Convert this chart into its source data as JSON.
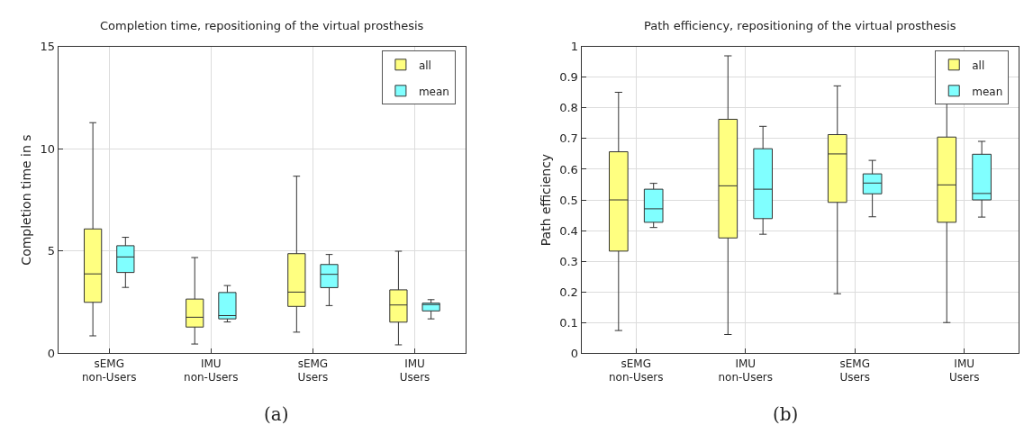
{
  "chart_data": [
    {
      "type": "box",
      "title": "Completion time, repositioning of the virtual prosthesis",
      "ylabel": "Completion time in s",
      "categories": [
        "sEMG\nnon-Users",
        "IMU\nnon-Users",
        "sEMG\nUsers",
        "IMU\nUsers"
      ],
      "ylim": [
        0,
        15
      ],
      "yticks": [
        0,
        5,
        10,
        15
      ],
      "grid": true,
      "legend": "top right",
      "annotations": [
        "(a)"
      ],
      "series": [
        {
          "name": "all",
          "color": "#ffff80",
          "boxes": [
            {
              "low": 0.85,
              "q1": 2.49,
              "median": 3.88,
              "q3": 6.08,
              "high": 11.28
            },
            {
              "low": 0.45,
              "q1": 1.28,
              "median": 1.76,
              "q3": 2.65,
              "high": 4.68
            },
            {
              "low": 1.03,
              "q1": 2.29,
              "median": 2.99,
              "q3": 4.87,
              "high": 8.66
            },
            {
              "low": 0.41,
              "q1": 1.52,
              "median": 2.36,
              "q3": 3.1,
              "high": 4.99
            }
          ]
        },
        {
          "name": "mean",
          "color": "#80ffff",
          "boxes": [
            {
              "low": 3.22,
              "q1": 3.95,
              "median": 4.71,
              "q3": 5.26,
              "high": 5.67
            },
            {
              "low": 1.53,
              "q1": 1.68,
              "median": 1.84,
              "q3": 2.97,
              "high": 3.31
            },
            {
              "low": 2.33,
              "q1": 3.21,
              "median": 3.86,
              "q3": 4.34,
              "high": 4.83
            },
            {
              "low": 1.68,
              "q1": 2.07,
              "median": 2.38,
              "q3": 2.45,
              "high": 2.62
            }
          ]
        }
      ]
    },
    {
      "type": "box",
      "title": "Path efficiency, repositioning of the virtual prosthesis",
      "ylabel": "Path efficiency",
      "categories": [
        "sEMG\nnon-Users",
        "IMU\nnon-Users",
        "sEMG\nUsers",
        "IMU\nUsers"
      ],
      "ylim": [
        0,
        1
      ],
      "yticks": [
        0,
        0.1,
        0.2,
        0.3,
        0.4,
        0.5,
        0.6,
        0.7,
        0.8,
        0.9,
        1
      ],
      "grid": true,
      "legend": "top right",
      "annotations": [
        "(b)"
      ],
      "series": [
        {
          "name": "all",
          "color": "#ffff80",
          "boxes": [
            {
              "low": 0.074,
              "q1": 0.333,
              "median": 0.5,
              "q3": 0.657,
              "high": 0.851
            },
            {
              "low": 0.061,
              "q1": 0.376,
              "median": 0.546,
              "q3": 0.763,
              "high": 0.97
            },
            {
              "low": 0.194,
              "q1": 0.492,
              "median": 0.65,
              "q3": 0.713,
              "high": 0.872
            },
            {
              "low": 0.1,
              "q1": 0.427,
              "median": 0.549,
              "q3": 0.705,
              "high": 0.959
            }
          ]
        },
        {
          "name": "mean",
          "color": "#80ffff",
          "boxes": [
            {
              "low": 0.41,
              "q1": 0.427,
              "median": 0.471,
              "q3": 0.535,
              "high": 0.554
            },
            {
              "low": 0.388,
              "q1": 0.439,
              "median": 0.535,
              "q3": 0.667,
              "high": 0.74
            },
            {
              "low": 0.445,
              "q1": 0.52,
              "median": 0.555,
              "q3": 0.585,
              "high": 0.629
            },
            {
              "low": 0.444,
              "q1": 0.5,
              "median": 0.521,
              "q3": 0.649,
              "high": 0.691
            }
          ]
        }
      ]
    }
  ]
}
